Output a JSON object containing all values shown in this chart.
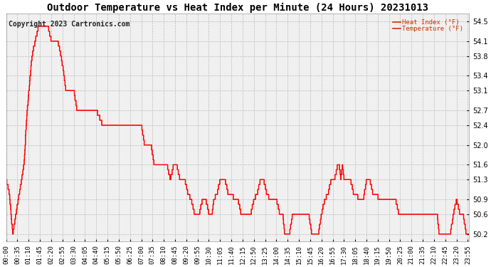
{
  "title": "Outdoor Temperature vs Heat Index per Minute (24 Hours) 20231013",
  "copyright": "Copyright 2023 Cartronics.com",
  "legend_labels": [
    "Heat Index (°F)",
    "Temperature (°F)"
  ],
  "line_color": "red",
  "background_color": "#ffffff",
  "plot_bg_color": "#f0f0f0",
  "grid_color": "#bbbbbb",
  "text_color": "black",
  "title_color": "black",
  "copyright_color": "#222222",
  "legend_color": "#cc3300",
  "yticks": [
    50.2,
    50.6,
    50.9,
    51.3,
    51.6,
    52.0,
    52.4,
    52.7,
    53.1,
    53.4,
    53.8,
    54.1,
    54.5
  ],
  "ymin": 50.05,
  "ymax": 54.65,
  "xtick_interval_minutes": 35,
  "total_minutes": 1440,
  "title_fontsize": 10,
  "axis_fontsize": 7,
  "copyright_fontsize": 7
}
